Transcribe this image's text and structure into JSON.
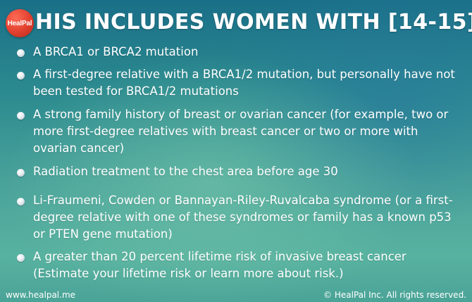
{
  "brand": {
    "logo_text": "HealPal"
  },
  "title": "HIS INCLUDES WOMEN WITH [14-15]:",
  "bullets": [
    {
      "text": "A BRCA1 or BRCA2 mutation"
    },
    {
      "text": "A first-degree relative with a BRCA1/2 mutation, but personally have not been tested for BRCA1/2 mutations"
    },
    {
      "text": "A strong family history of breast or ovarian cancer (for example, two or more first-degree relatives with breast cancer or two or more with ovarian cancer)"
    },
    {
      "text": "Radiation treatment to the chest area before age 30"
    },
    {
      "text": "Li-Fraumeni, Cowden or Bannayan-Riley-Ruvalcaba syndrome (or a first-degree relative with one of these syndromes or family has a known p53 or PTEN gene mutation)"
    },
    {
      "text": "A greater than 20 percent lifetime risk of invasive breast cancer (Estimate your lifetime risk or learn more about risk.)"
    }
  ],
  "footer": {
    "website": "www.healpal.me",
    "copyright": "© HealPal Inc. All rights reserved."
  },
  "colors": {
    "background_top": "#1a6f88",
    "background_bottom": "#58b2a0",
    "logo": "#e0402e",
    "text": "#ffffff"
  }
}
